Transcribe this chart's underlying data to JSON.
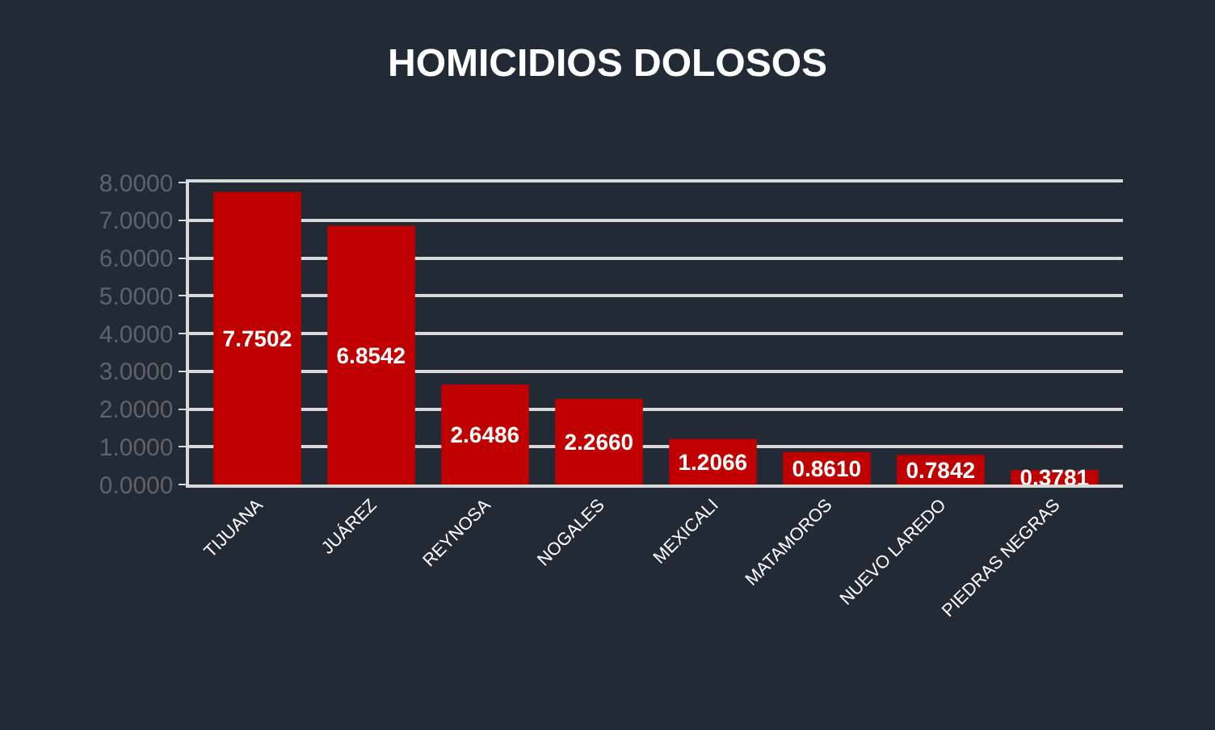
{
  "chart_data": {
    "type": "bar",
    "title": "HOMICIDIOS DOLOSOS",
    "categories": [
      "TIJUANA",
      "JUÁREZ",
      "REYNOSA",
      "NOGALES",
      "MEXICALI",
      "MATAMOROS",
      "NUEVO LAREDO",
      "PIEDRAS NEGRAS"
    ],
    "values": [
      7.7502,
      6.8542,
      2.6486,
      2.266,
      1.2066,
      0.861,
      0.7842,
      0.3781
    ],
    "value_labels": [
      "7.7502",
      "6.8542",
      "2.6486",
      "2.2660",
      "1.2066",
      "0.8610",
      "0.7842",
      "0.3781"
    ],
    "color": "#c00000",
    "ylim": [
      0,
      8
    ],
    "yticks": [
      {
        "value": 0,
        "label": "0.0000"
      },
      {
        "value": 1,
        "label": "1.0000"
      },
      {
        "value": 2,
        "label": "2.0000"
      },
      {
        "value": 3,
        "label": "3.0000"
      },
      {
        "value": 4,
        "label": "4.0000"
      },
      {
        "value": 5,
        "label": "5.0000"
      },
      {
        "value": 6,
        "label": "6.0000"
      },
      {
        "value": 7,
        "label": "7.0000"
      },
      {
        "value": 8,
        "label": "8.0000"
      }
    ],
    "grid": "y"
  }
}
